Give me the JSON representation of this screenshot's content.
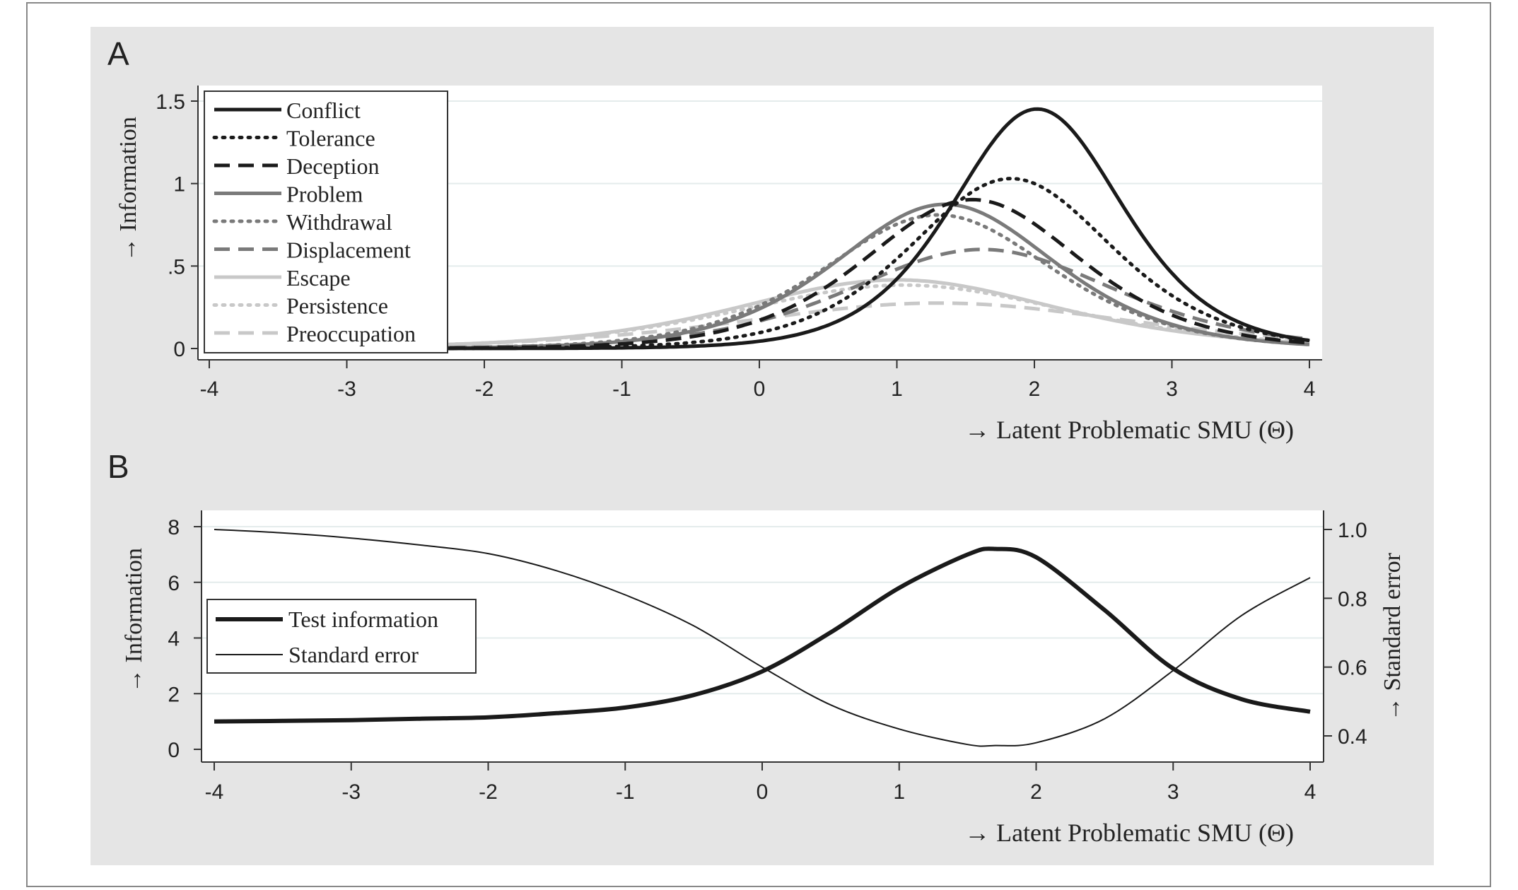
{
  "chart_data": [
    {
      "panel_label": "A",
      "type": "line",
      "ylabel": "→ Information",
      "xlabel": "→ Latent Problematic SMU (Θ)",
      "xlim": [
        -4,
        4
      ],
      "ylim": [
        0,
        1.5
      ],
      "x_ticks": [
        "-4",
        "-3",
        "-2",
        "-1",
        "0",
        "1",
        "2",
        "3",
        "4"
      ],
      "y_ticks": [
        "0",
        ".5",
        "1",
        "1.5"
      ],
      "grid": "horizontal",
      "legend_position": "top-left",
      "series": [
        {
          "name": "Conflict",
          "color": "#1a1a1a",
          "dash": "solid",
          "a": 2.41,
          "b": 2.02
        },
        {
          "name": "Tolerance",
          "color": "#1a1a1a",
          "dash": "dot",
          "a": 2.03,
          "b": 1.83
        },
        {
          "name": "Deception",
          "color": "#1a1a1a",
          "dash": "dash",
          "a": 1.9,
          "b": 1.55
        },
        {
          "name": "Problem",
          "color": "#7a7a7a",
          "dash": "solid",
          "a": 1.87,
          "b": 1.35
        },
        {
          "name": "Withdrawal",
          "color": "#7a7a7a",
          "dash": "dot",
          "a": 1.8,
          "b": 1.3
        },
        {
          "name": "Displacement",
          "color": "#7a7a7a",
          "dash": "dash",
          "a": 1.55,
          "b": 1.62
        },
        {
          "name": "Escape",
          "color": "#c8c8c8",
          "dash": "solid",
          "a": 1.29,
          "b": 1.0
        },
        {
          "name": "Persistence",
          "color": "#c8c8c8",
          "dash": "dot",
          "a": 1.24,
          "b": 1.05
        },
        {
          "name": "Preoccupation",
          "color": "#c8c8c8",
          "dash": "dash",
          "a": 1.05,
          "b": 1.3
        }
      ]
    },
    {
      "panel_label": "B",
      "type": "line",
      "ylabel": "→ Information",
      "y2label": "→ Standard error",
      "xlabel": "→ Latent Problematic SMU (Θ)",
      "xlim": [
        -4,
        4
      ],
      "ylim": [
        0,
        8
      ],
      "y2lim": [
        0.4,
        1.0
      ],
      "x_ticks": [
        "-4",
        "-3",
        "-2",
        "-1",
        "0",
        "1",
        "2",
        "3",
        "4"
      ],
      "y_ticks": [
        "0",
        "2",
        "4",
        "6",
        "8"
      ],
      "y2_ticks": [
        "0.4",
        "0.6",
        "0.8",
        "1.0"
      ],
      "grid": "horizontal",
      "legend_position": "middle-left",
      "series": [
        {
          "name": "Test information",
          "color": "#1a1a1a",
          "width": "thick",
          "x": [
            -4,
            -3.5,
            -3,
            -2.5,
            -2,
            -1.5,
            -1,
            -0.5,
            0,
            0.5,
            1,
            1.5,
            1.7,
            2,
            2.5,
            3,
            3.5,
            4
          ],
          "values": [
            1.0,
            1.02,
            1.05,
            1.1,
            1.15,
            1.3,
            1.5,
            1.95,
            2.8,
            4.2,
            5.8,
            7.0,
            7.2,
            6.9,
            5.0,
            2.9,
            1.8,
            1.35
          ]
        },
        {
          "name": "Standard error",
          "color": "#1a1a1a",
          "width": "thin",
          "axis": "right",
          "x": [
            -4,
            -3.5,
            -3,
            -2.5,
            -2,
            -1.5,
            -1,
            -0.5,
            0,
            0.5,
            1,
            1.5,
            1.7,
            2,
            2.5,
            3,
            3.5,
            4
          ],
          "values": [
            1.0,
            0.99,
            0.975,
            0.955,
            0.93,
            0.88,
            0.81,
            0.72,
            0.6,
            0.49,
            0.42,
            0.375,
            0.372,
            0.38,
            0.45,
            0.59,
            0.75,
            0.86
          ]
        }
      ]
    }
  ]
}
